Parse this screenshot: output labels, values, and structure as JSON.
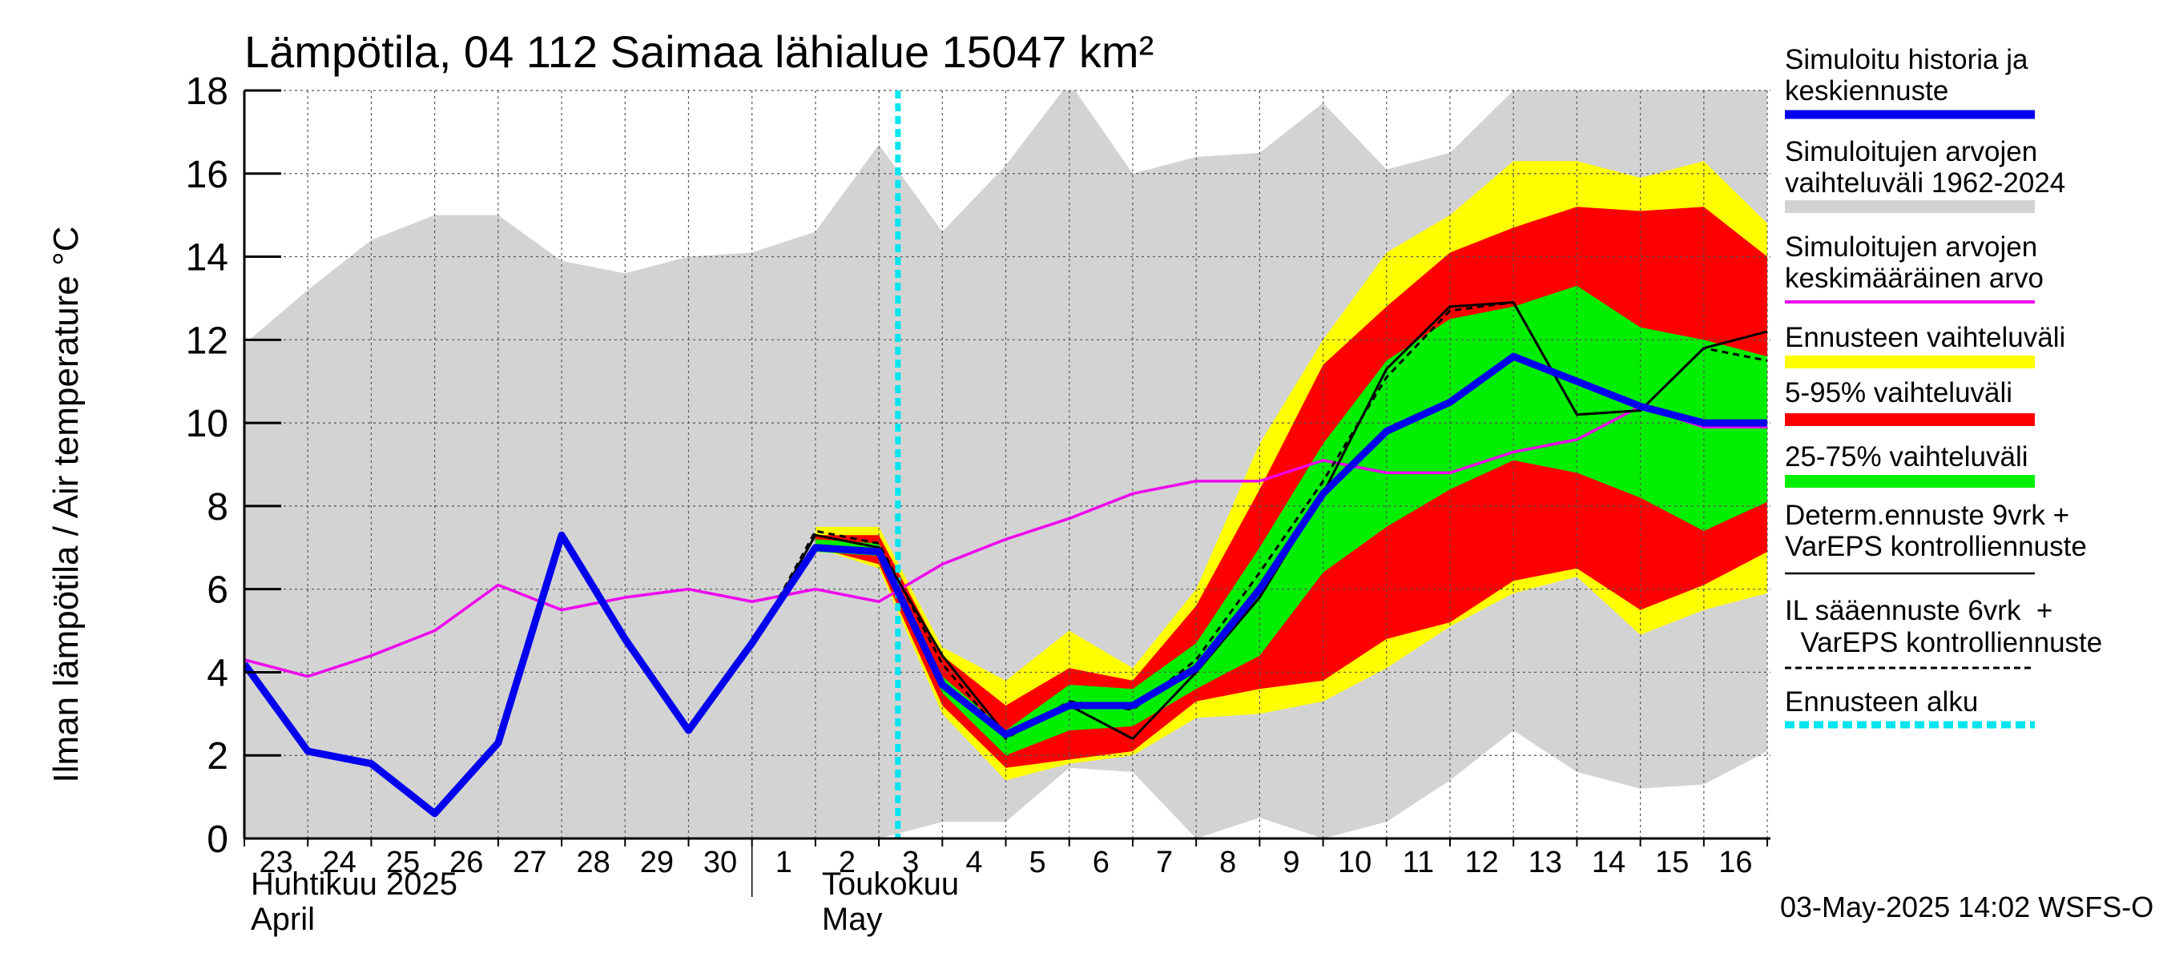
{
  "chart_data": {
    "type": "area",
    "title": "Lämpötila, 04 112 Saimaa lähialue 15047 km²",
    "ylabel": "Ilman lämpötila / Air temperature   °C",
    "ylim": [
      0,
      18
    ],
    "yticks": [
      0,
      2,
      4,
      6,
      8,
      10,
      12,
      14,
      16,
      18
    ],
    "x_start": "2025-04-23",
    "x_days": 25,
    "day_labels": [
      "23",
      "24",
      "25",
      "26",
      "27",
      "28",
      "29",
      "30",
      "1",
      "2",
      "3",
      "4",
      "5",
      "6",
      "7",
      "8",
      "9",
      "10",
      "11",
      "12",
      "13",
      "14",
      "15",
      "16"
    ],
    "month_labels": [
      {
        "day_index": 0,
        "fi": "Huhtikuu  2025",
        "en": "April"
      },
      {
        "day_index": 9,
        "fi": "Toukokuu",
        "en": "May"
      }
    ],
    "footer": "03-May-2025 14:02 WSFS-O",
    "forecast_start_x": 10.3,
    "series": [
      {
        "name": "Simuloitujen arvojen vaihteluväli 1962-2024",
        "kind": "band",
        "color": "#d3d3d3",
        "x": [
          0,
          1,
          2,
          3,
          4,
          5,
          6,
          7,
          8,
          9,
          10,
          11,
          12,
          13,
          14,
          15,
          16,
          17,
          18,
          19,
          20,
          21,
          22,
          23,
          24
        ],
        "upper": [
          11.9,
          13.2,
          14.4,
          15.0,
          15.0,
          13.9,
          13.6,
          14.0,
          14.1,
          14.6,
          16.7,
          14.6,
          16.2,
          18.2,
          16.0,
          16.4,
          16.5,
          17.7,
          16.1,
          16.5,
          18.0,
          18.0,
          18.0,
          18.0,
          18.0
        ],
        "lower": [
          0,
          0,
          0,
          0,
          0,
          0,
          0,
          0,
          0,
          0,
          0,
          0.4,
          0.4,
          1.7,
          1.6,
          0,
          0.5,
          0,
          0.4,
          1.4,
          2.6,
          1.6,
          1.2,
          1.3,
          2.1
        ]
      },
      {
        "name": "Ennusteen vaihteluväli",
        "kind": "band",
        "color": "#ffff00",
        "x": [
          9,
          10,
          11,
          12,
          13,
          14,
          15,
          16,
          17,
          18,
          19,
          20,
          21,
          22,
          23,
          24
        ],
        "upper": [
          7.5,
          7.5,
          4.6,
          3.8,
          5.0,
          4.1,
          6.0,
          9.5,
          12.0,
          14.1,
          15.0,
          16.3,
          16.3,
          15.9,
          16.3,
          14.8
        ],
        "lower": [
          7.0,
          6.5,
          3.0,
          1.4,
          1.8,
          2.0,
          2.9,
          3.0,
          3.3,
          4.1,
          5.1,
          5.9,
          6.3,
          4.9,
          5.5,
          5.9
        ]
      },
      {
        "name": "5-95% vaihteluväli",
        "kind": "band",
        "color": "#ff0000",
        "x": [
          9,
          10,
          11,
          12,
          13,
          14,
          15,
          16,
          17,
          18,
          19,
          20,
          21,
          22,
          23,
          24
        ],
        "upper": [
          7.3,
          7.3,
          4.4,
          3.2,
          4.1,
          3.8,
          5.6,
          8.4,
          11.4,
          12.8,
          14.1,
          14.7,
          15.2,
          15.1,
          15.2,
          14.0
        ],
        "lower": [
          7.0,
          6.6,
          3.2,
          1.7,
          1.9,
          2.1,
          3.3,
          3.6,
          3.8,
          4.8,
          5.2,
          6.2,
          6.5,
          5.5,
          6.1,
          6.9
        ]
      },
      {
        "name": "25-75% vaihteluväli",
        "kind": "band",
        "color": "#00ee00",
        "x": [
          9,
          10,
          11,
          12,
          13,
          14,
          15,
          16,
          17,
          18,
          19,
          20,
          21,
          22,
          23,
          24
        ],
        "upper": [
          7.2,
          7.1,
          3.9,
          2.6,
          3.7,
          3.6,
          4.7,
          7.0,
          9.5,
          11.5,
          12.5,
          12.8,
          13.3,
          12.3,
          12.0,
          11.6
        ],
        "lower": [
          6.9,
          6.8,
          3.5,
          2.0,
          2.6,
          2.7,
          3.6,
          4.4,
          6.4,
          7.5,
          8.4,
          9.1,
          8.8,
          8.2,
          7.4,
          8.1
        ]
      },
      {
        "name": "Simuloitujen arvojen keskimääräinen arvo",
        "kind": "line",
        "color": "#ee00ee",
        "x": [
          0,
          1,
          2,
          3,
          4,
          5,
          6,
          7,
          8,
          9,
          10,
          11,
          12,
          13,
          14,
          15,
          16,
          17,
          18,
          19,
          20,
          21,
          22,
          23,
          24
        ],
        "y": [
          4.3,
          3.9,
          4.4,
          5.0,
          6.1,
          5.5,
          5.8,
          6.0,
          5.7,
          6.0,
          5.7,
          6.6,
          7.2,
          7.7,
          8.3,
          8.6,
          8.6,
          9.1,
          8.8,
          8.8,
          9.3,
          9.6,
          10.4,
          9.9,
          9.9
        ]
      },
      {
        "name": "Determ.ennuste 9vrk + VarEPS kontrolliennuste",
        "kind": "line",
        "color": "#000000",
        "x": [
          8,
          9,
          10,
          11,
          12,
          13,
          14,
          15,
          16,
          17,
          18,
          19,
          20,
          21,
          22,
          23,
          24
        ],
        "y": [
          4.6,
          7.3,
          7.0,
          4.4,
          2.5,
          3.2,
          2.4,
          4.0,
          5.8,
          8.3,
          11.3,
          12.8,
          12.9,
          10.2,
          10.3,
          11.8,
          12.2
        ]
      },
      {
        "name": "IL sääennuste 6vrk + VarEPS kontrolliennuste",
        "kind": "dashed",
        "color": "#000000",
        "x": [
          8,
          9,
          10,
          11,
          12,
          13,
          14,
          15,
          16,
          17,
          18,
          19,
          20,
          21,
          22,
          23,
          24
        ],
        "y": [
          4.6,
          7.4,
          7.1,
          4.2,
          2.4,
          3.3,
          3.1,
          4.3,
          6.4,
          8.6,
          11.1,
          12.7,
          12.9,
          10.2,
          10.3,
          11.8,
          11.5
        ]
      },
      {
        "name": "Simuloitu historia ja keskiennuste",
        "kind": "line",
        "color": "#0000ee",
        "x": [
          0,
          1,
          2,
          3,
          4,
          5,
          6,
          7,
          8,
          9,
          10,
          11,
          12,
          13,
          14,
          15,
          16,
          17,
          18,
          19,
          20,
          21,
          22,
          23,
          24
        ],
        "y": [
          4.2,
          2.1,
          1.8,
          0.6,
          2.3,
          7.3,
          4.8,
          2.6,
          4.7,
          7.0,
          6.9,
          3.7,
          2.5,
          3.2,
          3.2,
          4.1,
          6.0,
          8.3,
          9.8,
          10.5,
          11.6,
          11.0,
          10.4,
          10.0,
          10.0
        ]
      }
    ],
    "legend": [
      {
        "line1": "Simuloitu historia ja",
        "line2": "keskiennuste",
        "color": "#0000ee",
        "style": "thick"
      },
      {
        "line1": "Simuloitujen arvojen",
        "line2": "vaihteluväli 1962-2024",
        "color": "#d3d3d3",
        "style": "band"
      },
      {
        "line1": "Simuloitujen arvojen",
        "line2": "keskimääräinen arvo",
        "color": "#ee00ee",
        "style": "thin"
      },
      {
        "line1": "Ennusteen vaihteluväli",
        "line2": "",
        "color": "#ffff00",
        "style": "band"
      },
      {
        "line1": "5-95% vaihteluväli",
        "line2": "",
        "color": "#ff0000",
        "style": "band"
      },
      {
        "line1": "25-75% vaihteluväli",
        "line2": "",
        "color": "#00ee00",
        "style": "band"
      },
      {
        "line1": "Determ.ennuste 9vrk +",
        "line2": "VarEPS kontrolliennuste",
        "color": "#000000",
        "style": "line"
      },
      {
        "line1": "IL sääennuste 6vrk  +",
        "line2": "  VarEPS kontrolliennuste",
        "color": "#000000",
        "style": "dashed"
      },
      {
        "line1": "Ennusteen alku",
        "line2": "",
        "color": "#00e5ee",
        "style": "dotted"
      }
    ]
  }
}
